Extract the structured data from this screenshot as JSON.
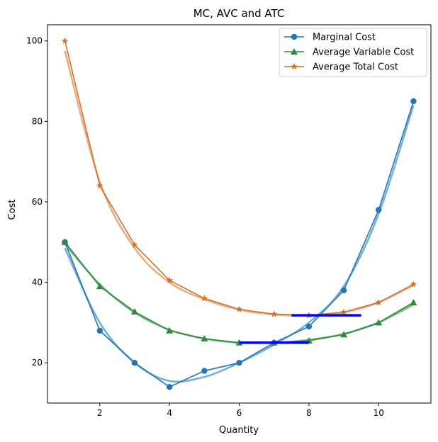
{
  "chart_data": {
    "type": "line",
    "title": "MC, AVC and ATC",
    "xlabel": "Quantity",
    "ylabel": "Cost",
    "xlim": [
      0.5,
      11.5
    ],
    "ylim": [
      10,
      104
    ],
    "xticks": [
      2,
      4,
      6,
      8,
      10
    ],
    "yticks": [
      20,
      40,
      60,
      80,
      100
    ],
    "x": [
      1,
      2,
      3,
      4,
      5,
      6,
      7,
      8,
      9,
      10,
      11
    ],
    "series": [
      {
        "name": "Marginal Cost",
        "color": "#1f77b4",
        "marker": "circle",
        "values": [
          50,
          28,
          20,
          14,
          18,
          20,
          25,
          29,
          38,
          58,
          85
        ]
      },
      {
        "name": "Average Variable Cost",
        "color": "#2e8b3e",
        "marker": "triangle",
        "values": [
          50,
          39,
          32.7,
          28,
          26,
          25,
          25,
          25.5,
          27,
          30,
          35
        ]
      },
      {
        "name": "Average Total Cost",
        "color": "#d2722b",
        "marker": "star",
        "values": [
          100,
          64,
          49.3,
          40.5,
          36,
          33.3,
          32.1,
          31.8,
          32.6,
          35,
          39.5
        ]
      }
    ],
    "smooth_fits": [
      {
        "of": "Marginal Cost",
        "color": "#5f9fd0",
        "values": [
          48.5,
          30,
          20,
          15.5,
          16.5,
          20,
          24.5,
          30,
          39,
          57,
          84
        ]
      },
      {
        "of": "Average Variable Cost",
        "color": "#5fa86b",
        "values": [
          49.5,
          39.5,
          32.5,
          28.2,
          26,
          25,
          25,
          25.7,
          27.2,
          30,
          34.5
        ]
      },
      {
        "of": "Average Total Cost",
        "color": "#e0a070",
        "values": [
          97.5,
          65,
          48.5,
          40,
          35.8,
          33.2,
          32,
          31.8,
          32.5,
          35,
          39.3
        ]
      }
    ],
    "min_markers": [
      {
        "color": "#0000ff",
        "x0": 6,
        "x1": 8,
        "y": 25
      },
      {
        "color": "#0000ff",
        "x0": 7.5,
        "x1": 9.5,
        "y": 31.8
      }
    ],
    "legend_position": "top-right",
    "grid": false
  }
}
